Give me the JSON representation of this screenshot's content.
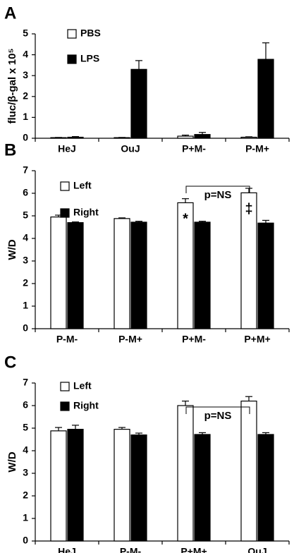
{
  "chart_data": [
    {
      "type": "bar",
      "panel_label": "A",
      "y_label": "fluc/β-gal x 10⁵",
      "categories": [
        "HeJ",
        "OuJ",
        "P+M-",
        "P-M+"
      ],
      "series": [
        {
          "name": "PBS",
          "color": "#ffffff",
          "values": [
            0.03,
            0.03,
            0.1,
            0.05
          ],
          "errors": [
            0.01,
            0.01,
            0.05,
            0.02
          ]
        },
        {
          "name": "LPS",
          "color": "#000000",
          "values": [
            0.05,
            3.3,
            0.18,
            3.78
          ],
          "errors": [
            0.03,
            0.42,
            0.1,
            0.79
          ]
        }
      ],
      "ylim": [
        0,
        5
      ],
      "yticks": [
        0,
        1,
        2,
        3,
        4,
        5
      ]
    },
    {
      "type": "bar",
      "panel_label": "B",
      "y_label": "W/D",
      "categories": [
        "P-M-",
        "P-M+",
        "P+M-",
        "P+M+"
      ],
      "series": [
        {
          "name": "Left",
          "color": "#ffffff",
          "values": [
            4.95,
            4.88,
            5.58,
            6.02
          ],
          "errors": [
            0.08,
            0.03,
            0.18,
            0.2
          ],
          "annotations": [
            null,
            null,
            "*",
            "‡"
          ]
        },
        {
          "name": "Right",
          "color": "#000000",
          "values": [
            4.7,
            4.72,
            4.72,
            4.68
          ],
          "errors": [
            0.03,
            0.04,
            0.04,
            0.12
          ]
        }
      ],
      "bracket_label": "p=NS",
      "ylim": [
        0,
        7
      ],
      "yticks": [
        0,
        1,
        2,
        3,
        4,
        5,
        6,
        7
      ]
    },
    {
      "type": "bar",
      "panel_label": "C",
      "y_label": "W/D",
      "categories": [
        "HeJ",
        "P-M-",
        "P+M+",
        "OuJ"
      ],
      "series": [
        {
          "name": "Left",
          "color": "#ffffff",
          "values": [
            4.88,
            4.95,
            6.0,
            6.2
          ],
          "errors": [
            0.15,
            0.08,
            0.2,
            0.2
          ]
        },
        {
          "name": "Right",
          "color": "#000000",
          "values": [
            4.95,
            4.7,
            4.72,
            4.72
          ],
          "errors": [
            0.18,
            0.08,
            0.08,
            0.08
          ]
        }
      ],
      "bracket_label": "p=NS",
      "ylim": [
        0,
        7
      ],
      "yticks": [
        0,
        1,
        2,
        3,
        4,
        5,
        6,
        7
      ]
    }
  ]
}
